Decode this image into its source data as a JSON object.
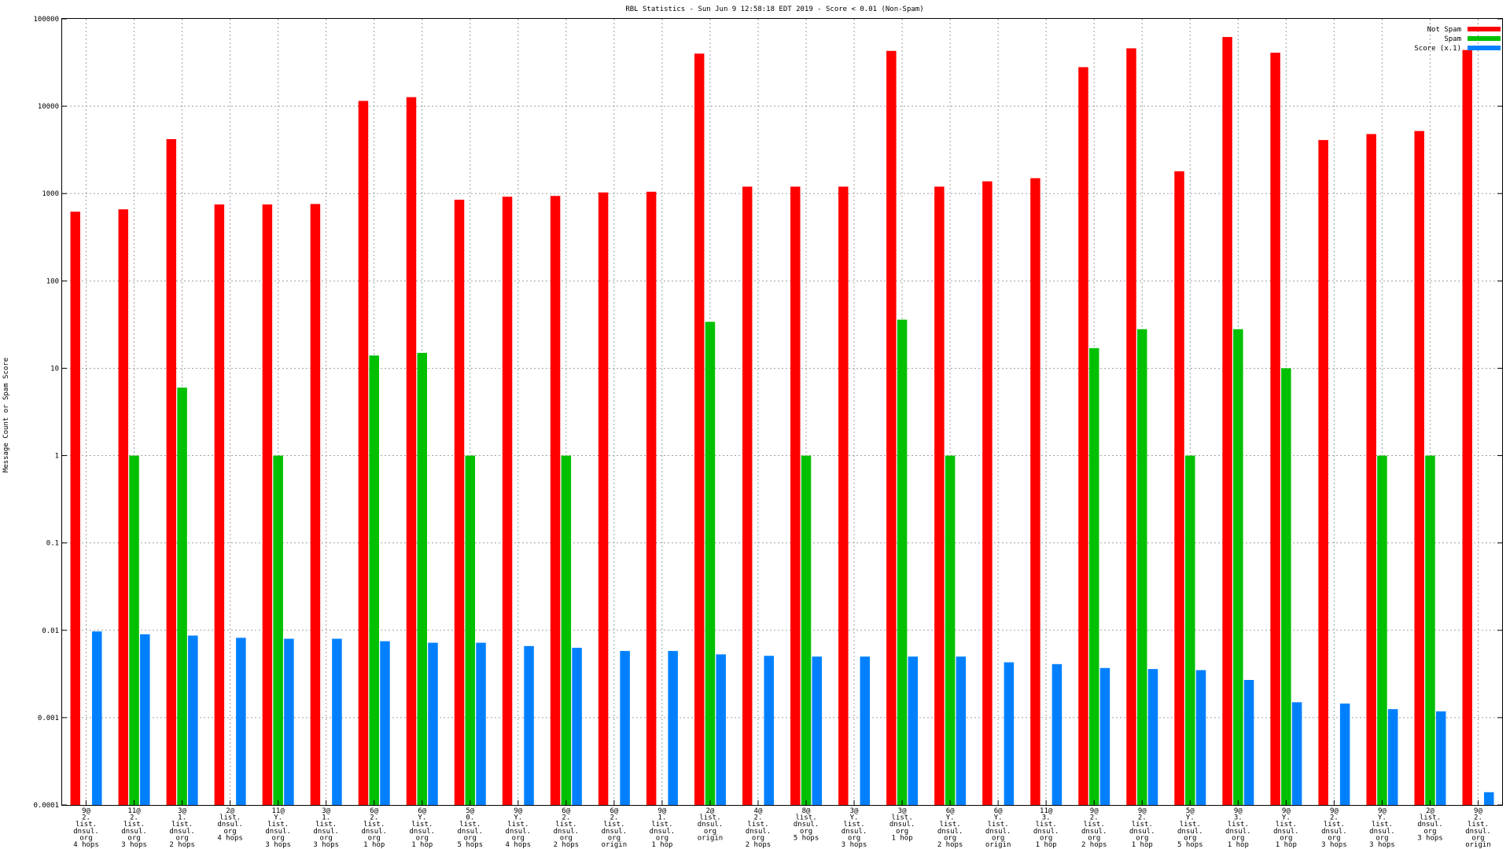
{
  "chart_data": {
    "type": "bar",
    "title": "RBL Statistics - Sun Jun  9 12:58:18 EDT 2019 - Score < 0.01 (Non-Spam)",
    "ylabel": "Message Count or Spam Score",
    "xlabel": "",
    "yscale": "log",
    "ylim": [
      0.0001,
      100000
    ],
    "yticks": [
      "0.0001",
      "0.001",
      "0.01",
      "0.1",
      "1",
      "10",
      "100",
      "1000",
      "10000",
      "100000"
    ],
    "grid": true,
    "legend_position": "top-right",
    "categories": [
      [
        "9@",
        "2.",
        "list.",
        "dnsul.",
        "org",
        "4 hops"
      ],
      [
        "11@",
        "2.",
        "list.",
        "dnsul.",
        "org",
        "3 hops"
      ],
      [
        "3@",
        "1.",
        "list.",
        "dnsul.",
        "org",
        "2 hops"
      ],
      [
        "2@",
        "list.",
        "dnsul.",
        "org",
        "4 hops"
      ],
      [
        "11@",
        "Y.",
        "list.",
        "dnsul.",
        "org",
        "3 hops"
      ],
      [
        "3@",
        "1.",
        "list.",
        "dnsul.",
        "org",
        "3 hops"
      ],
      [
        "6@",
        "2.",
        "list.",
        "dnsul.",
        "org",
        "1 hop"
      ],
      [
        "6@",
        "Y.",
        "list.",
        "dnsul.",
        "org",
        "1 hop"
      ],
      [
        "5@",
        "0.",
        "list.",
        "dnsul.",
        "org",
        "5 hops"
      ],
      [
        "9@",
        "Y.",
        "list.",
        "dnsul.",
        "org",
        "4 hops"
      ],
      [
        "6@",
        "2.",
        "list.",
        "dnsul.",
        "org",
        "2 hops"
      ],
      [
        "6@",
        "2.",
        "list.",
        "dnsul.",
        "org",
        "origin"
      ],
      [
        "9@",
        "1.",
        "list.",
        "dnsul.",
        "org",
        "1 hop"
      ],
      [
        "2@",
        "list.",
        "dnsul.",
        "org",
        "origin"
      ],
      [
        "4@",
        "2.",
        "list.",
        "dnsul.",
        "org",
        "2 hops"
      ],
      [
        "8@",
        "list.",
        "dnsul.",
        "org",
        "5 hops"
      ],
      [
        "3@",
        "Y.",
        "list.",
        "dnsul.",
        "org",
        "3 hops"
      ],
      [
        "3@",
        "list.",
        "dnsul.",
        "org",
        "1 hop"
      ],
      [
        "6@",
        "Y.",
        "list.",
        "dnsul.",
        "org",
        "2 hops"
      ],
      [
        "6@",
        "Y.",
        "list.",
        "dnsul.",
        "org",
        "origin"
      ],
      [
        "11@",
        "3.",
        "list.",
        "dnsul.",
        "org",
        "1 hop"
      ],
      [
        "9@",
        "2.",
        "list.",
        "dnsul.",
        "org",
        "2 hops"
      ],
      [
        "9@",
        "2.",
        "list.",
        "dnsul.",
        "org",
        "1 hop"
      ],
      [
        "5@",
        "Y.",
        "list.",
        "dnsul.",
        "org",
        "5 hops"
      ],
      [
        "9@",
        "3.",
        "list.",
        "dnsul.",
        "org",
        "1 hop"
      ],
      [
        "9@",
        "Y.",
        "list.",
        "dnsul.",
        "org",
        "1 hop"
      ],
      [
        "9@",
        "2.",
        "list.",
        "dnsul.",
        "org",
        "3 hops"
      ],
      [
        "9@",
        "Y.",
        "list.",
        "dnsul.",
        "org",
        "3 hops"
      ],
      [
        "2@",
        "list.",
        "dnsul.",
        "org",
        "3 hops"
      ],
      [
        "9@",
        "2.",
        "list.",
        "dnsul.",
        "org",
        "origin"
      ]
    ],
    "series": [
      {
        "name": "Not Spam",
        "color": "#ff0000",
        "values": [
          620,
          660,
          4200,
          750,
          750,
          760,
          11500,
          12700,
          850,
          920,
          940,
          1030,
          1050,
          40000,
          1200,
          1200,
          1200,
          43000,
          1200,
          1380,
          1500,
          28000,
          46000,
          1800,
          62000,
          41000,
          4100,
          4800,
          5200,
          44000
        ]
      },
      {
        "name": "Spam",
        "color": "#00c000",
        "values": [
          0,
          1,
          6,
          0,
          1,
          0,
          14,
          15,
          1,
          0,
          1,
          0,
          0,
          34,
          0,
          1,
          0,
          36,
          1,
          0,
          0,
          17,
          28,
          1,
          28,
          10,
          0,
          1,
          1,
          0
        ]
      },
      {
        "name": "Score (x.1)",
        "color": "#0080ff",
        "values": [
          0.0097,
          0.009,
          0.0087,
          0.0082,
          0.008,
          0.008,
          0.0075,
          0.0072,
          0.0072,
          0.0066,
          0.0063,
          0.0058,
          0.0058,
          0.0053,
          0.0051,
          0.005,
          0.005,
          0.005,
          0.005,
          0.0043,
          0.0041,
          0.0037,
          0.0036,
          0.0035,
          0.0027,
          0.0015,
          0.00145,
          0.00125,
          0.00118,
          0.00014
        ]
      }
    ]
  }
}
